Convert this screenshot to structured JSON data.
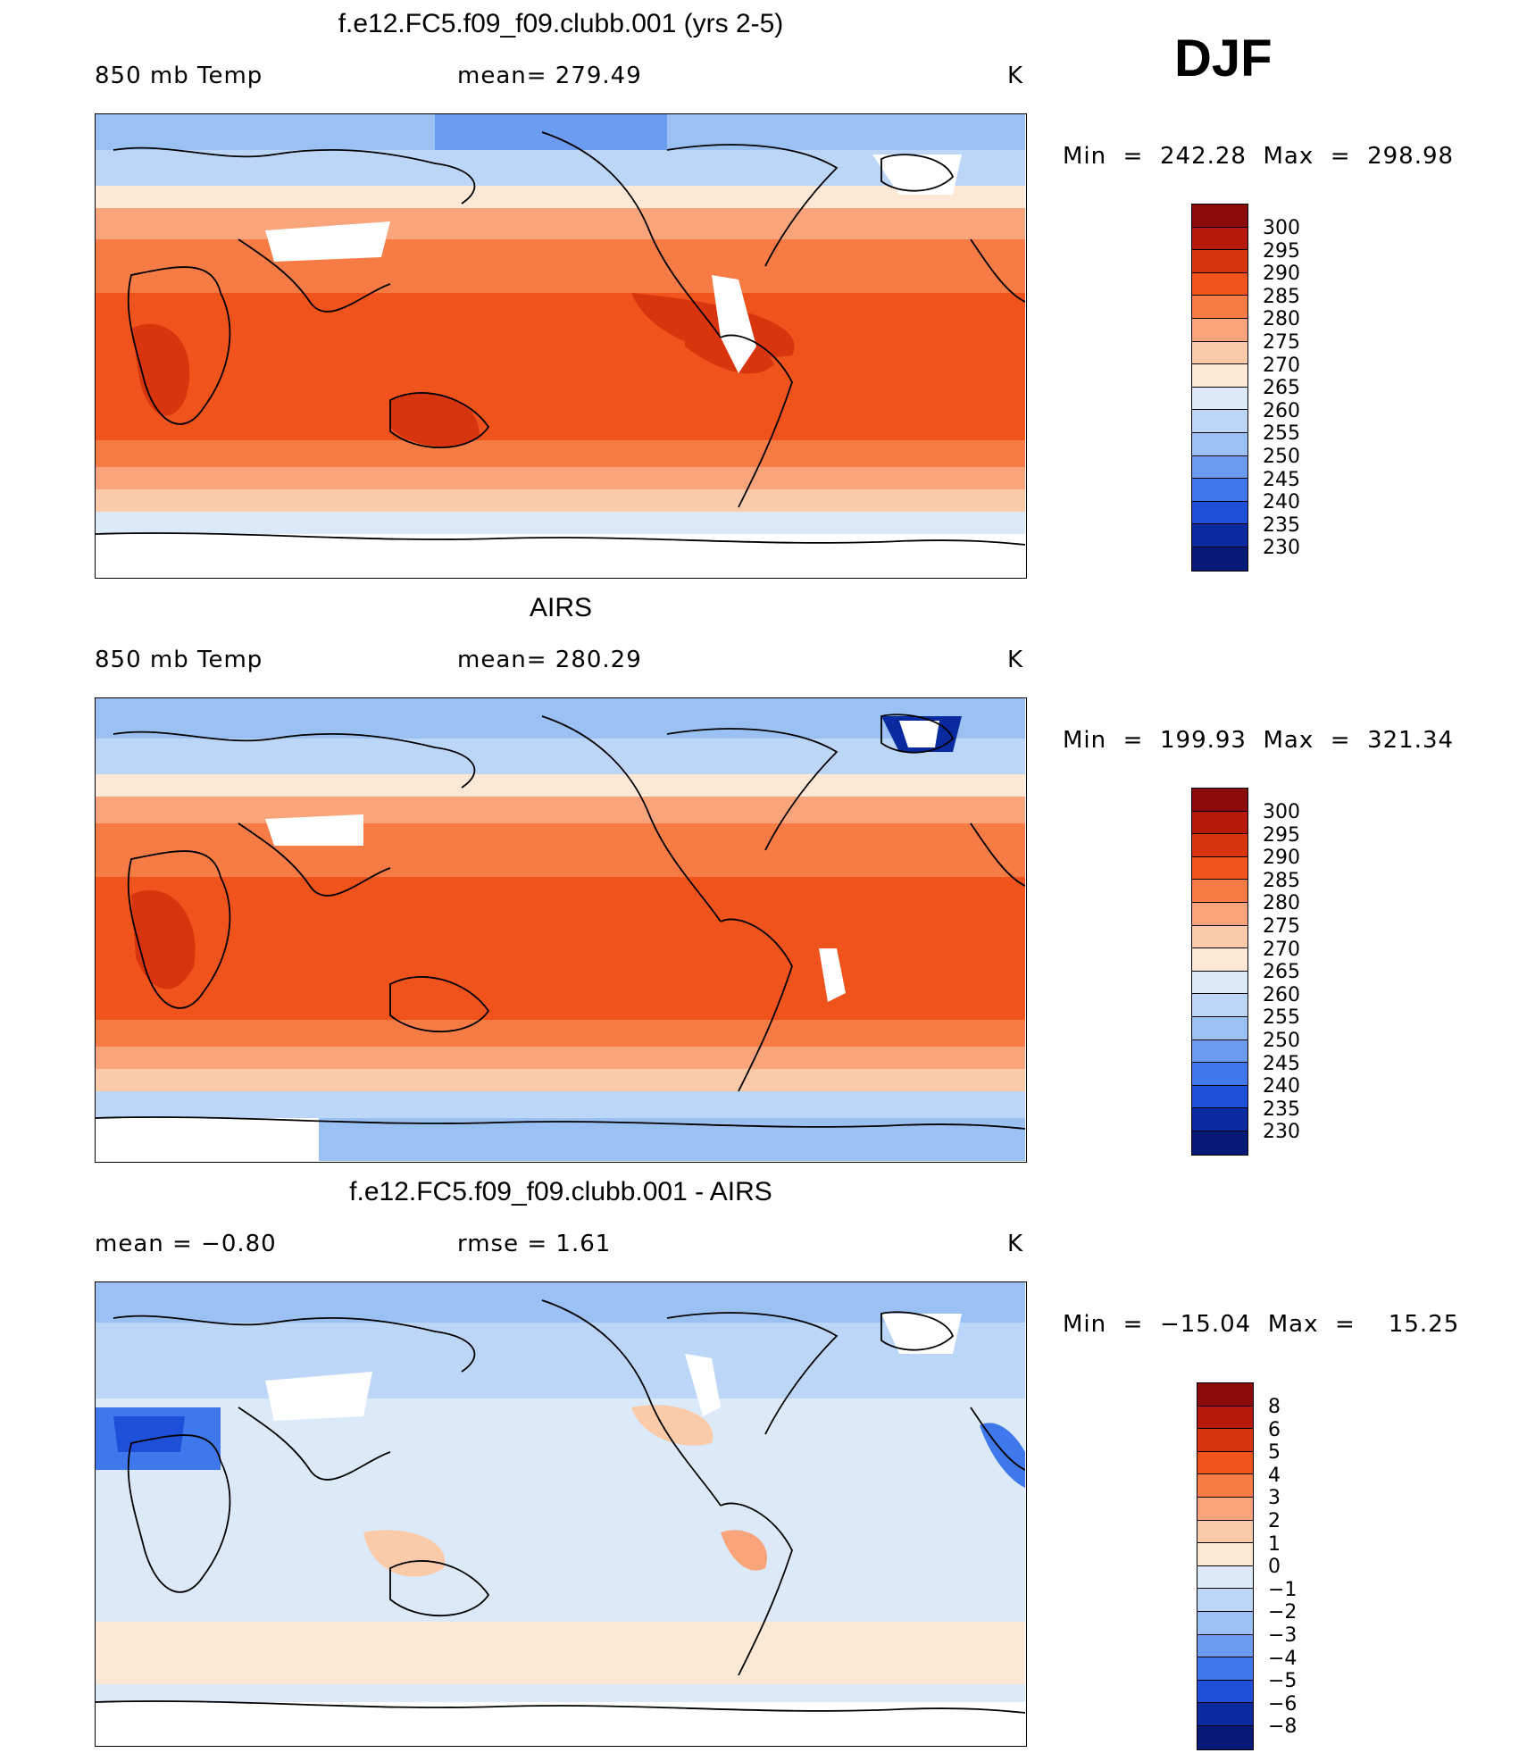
{
  "season_label": "DJF",
  "panels": [
    {
      "title": "f.e12.FC5.f09_f09.clubb.001 (yrs 2-5)",
      "left_label": "850 mb Temp",
      "mid_label": "mean= 279.49",
      "mid2_label": "",
      "unit": "K",
      "minmax": "Min  =  242.28  Max  =  298.98",
      "colorbar_labels": [
        "300",
        "295",
        "290",
        "285",
        "280",
        "275",
        "270",
        "265",
        "260",
        "255",
        "250",
        "245",
        "240",
        "235",
        "230"
      ],
      "colors": [
        "#8b0a0a",
        "#b51a0a",
        "#d8340d",
        "#f0531c",
        "#f67b45",
        "#f9a47a",
        "#fbcaa8",
        "#fde8d6",
        "#dbe9f9",
        "#bcd6f7",
        "#9ac0f4",
        "#6b9cf0",
        "#3f78ec",
        "#1d4fd8",
        "#0a2aa0",
        "#071a78"
      ]
    },
    {
      "title": "AIRS",
      "left_label": "850 mb Temp",
      "mid_label": "mean= 280.29",
      "mid2_label": "",
      "unit": "K",
      "minmax": "Min  =  199.93  Max  =  321.34",
      "colorbar_labels": [
        "300",
        "295",
        "290",
        "285",
        "280",
        "275",
        "270",
        "265",
        "260",
        "255",
        "250",
        "245",
        "240",
        "235",
        "230"
      ],
      "colors": [
        "#8b0a0a",
        "#b51a0a",
        "#d8340d",
        "#f0531c",
        "#f67b45",
        "#f9a47a",
        "#fbcaa8",
        "#fde8d6",
        "#dbe9f9",
        "#bcd6f7",
        "#9ac0f4",
        "#6b9cf0",
        "#3f78ec",
        "#1d4fd8",
        "#0a2aa0",
        "#071a78"
      ]
    },
    {
      "title": "f.e12.FC5.f09_f09.clubb.001 - AIRS",
      "left_label": "mean =    −0.80",
      "mid_label": "rmse =     1.61",
      "mid2_label": "",
      "unit": "K",
      "minmax": "Min  =  −15.04  Max  =    15.25",
      "colorbar_labels": [
        "8",
        "6",
        "5",
        "4",
        "3",
        "2",
        "1",
        "0",
        "−1",
        "−2",
        "−3",
        "−4",
        "−5",
        "−6",
        "−8"
      ],
      "colors": [
        "#8b0a0a",
        "#b51a0a",
        "#d8340d",
        "#f0531c",
        "#f67b45",
        "#f9a47a",
        "#fbcaa8",
        "#fde8d6",
        "#dbe9f9",
        "#bcd6f7",
        "#9ac0f4",
        "#6b9cf0",
        "#3f78ec",
        "#1d4fd8",
        "#0a2aa0",
        "#071a78"
      ]
    }
  ]
}
